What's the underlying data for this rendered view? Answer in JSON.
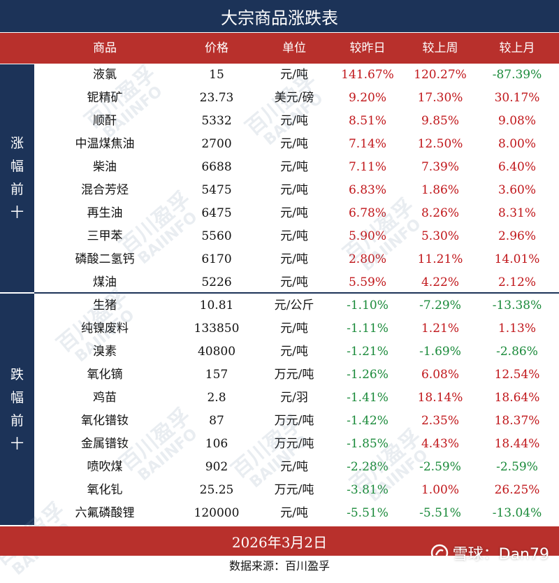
{
  "title": "大宗商品涨跌表",
  "headers": [
    "商品",
    "价格",
    "单位",
    "较昨日",
    "较上周",
    "较上月"
  ],
  "sections": {
    "up": "涨幅前十",
    "down": "跌幅前十"
  },
  "rows_up": [
    {
      "name": "液氯",
      "price": "15",
      "unit": "元/吨",
      "day": "141.67%",
      "week": "120.27%",
      "month": "-87.39%"
    },
    {
      "name": "铌精矿",
      "price": "23.73",
      "unit": "美元/磅",
      "day": "9.20%",
      "week": "17.30%",
      "month": "30.17%"
    },
    {
      "name": "顺酐",
      "price": "5332",
      "unit": "元/吨",
      "day": "8.51%",
      "week": "9.85%",
      "month": "9.08%"
    },
    {
      "name": "中温煤焦油",
      "price": "2700",
      "unit": "元/吨",
      "day": "7.14%",
      "week": "12.50%",
      "month": "8.00%"
    },
    {
      "name": "柴油",
      "price": "6688",
      "unit": "元/吨",
      "day": "7.11%",
      "week": "7.39%",
      "month": "6.40%"
    },
    {
      "name": "混合芳烃",
      "price": "5475",
      "unit": "元/吨",
      "day": "6.83%",
      "week": "1.86%",
      "month": "3.60%"
    },
    {
      "name": "再生油",
      "price": "6475",
      "unit": "元/吨",
      "day": "6.78%",
      "week": "8.26%",
      "month": "8.31%"
    },
    {
      "name": "三甲苯",
      "price": "5560",
      "unit": "元/吨",
      "day": "5.90%",
      "week": "5.30%",
      "month": "2.96%"
    },
    {
      "name": "磷酸二氢钙",
      "price": "6170",
      "unit": "元/吨",
      "day": "2.80%",
      "week": "11.21%",
      "month": "14.01%"
    },
    {
      "name": "煤油",
      "price": "5226",
      "unit": "元/吨",
      "day": "5.59%",
      "week": "4.22%",
      "month": "2.12%"
    }
  ],
  "rows_down": [
    {
      "name": "生猪",
      "price": "10.81",
      "unit": "元/公斤",
      "day": "-1.10%",
      "week": "-7.29%",
      "month": "-13.38%"
    },
    {
      "name": "纯镍废料",
      "price": "133850",
      "unit": "元/吨",
      "day": "-1.11%",
      "week": "1.21%",
      "month": "1.13%"
    },
    {
      "name": "溴素",
      "price": "40800",
      "unit": "元/吨",
      "day": "-1.21%",
      "week": "-1.69%",
      "month": "-2.86%"
    },
    {
      "name": "氧化镝",
      "price": "157",
      "unit": "万元/吨",
      "day": "-1.26%",
      "week": "6.08%",
      "month": "12.54%"
    },
    {
      "name": "鸡苗",
      "price": "2.8",
      "unit": "元/羽",
      "day": "-1.41%",
      "week": "18.14%",
      "month": "18.64%"
    },
    {
      "name": "氧化镨钕",
      "price": "87",
      "unit": "万元/吨",
      "day": "-1.42%",
      "week": "2.35%",
      "month": "18.37%"
    },
    {
      "name": "金属镨钕",
      "price": "106",
      "unit": "万元/吨",
      "day": "-1.85%",
      "week": "4.43%",
      "month": "18.44%"
    },
    {
      "name": "喷吹煤",
      "price": "902",
      "unit": "元/吨",
      "day": "-2.28%",
      "week": "-2.59%",
      "month": "-2.59%"
    },
    {
      "name": "氧化钆",
      "price": "25.25",
      "unit": "万元/吨",
      "day": "-3.81%",
      "week": "1.00%",
      "month": "26.25%"
    },
    {
      "name": "六氟磷酸锂",
      "price": "120000",
      "unit": "元/吨",
      "day": "-5.51%",
      "week": "-5.51%",
      "month": "-13.04%"
    }
  ],
  "date": "2026年3月2日",
  "source": "数据来源：百川盈孚",
  "watermark": {
    "cn": "百川盈孚",
    "en": "BAIINFO"
  },
  "xueqiu": "雪球：Dan79",
  "colors": {
    "navy": "#1c3358",
    "red": "#b8302c",
    "positive": "#c0161a",
    "negative": "#1a8a3a"
  }
}
